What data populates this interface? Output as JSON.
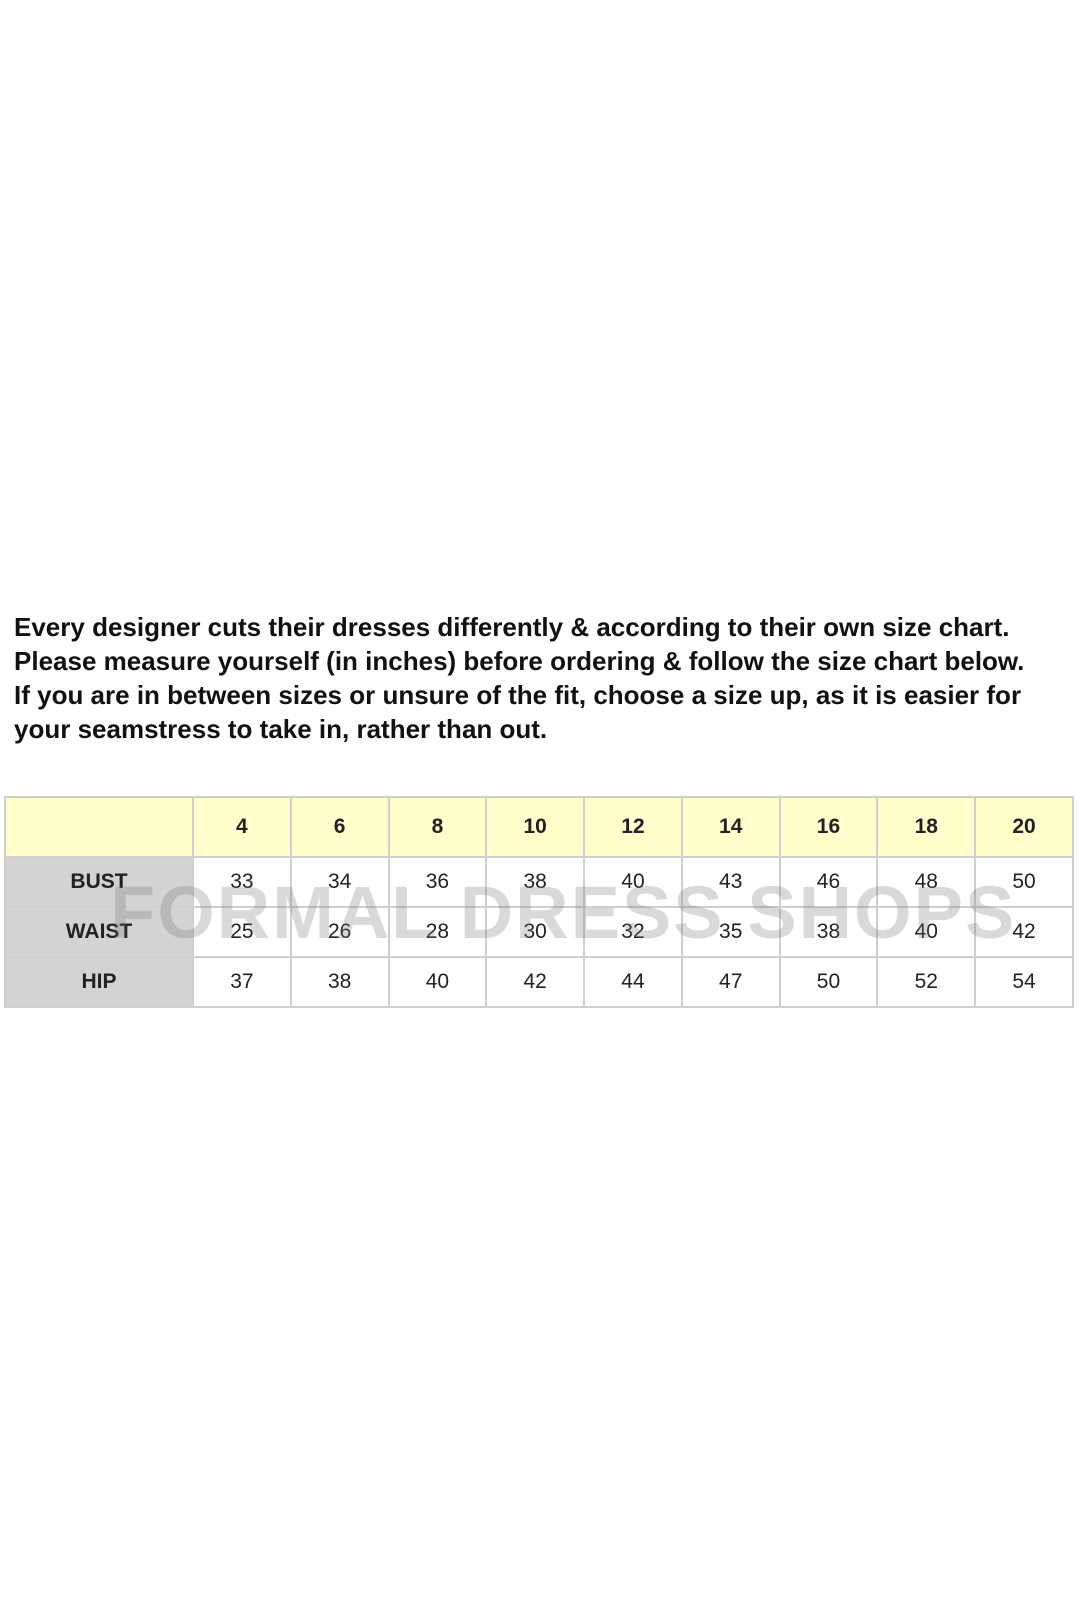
{
  "intro": {
    "paragraph1": "Every designer cuts their dresses differently & according to their own size chart. Please measure yourself (in inches) before ordering & follow the size chart below.",
    "paragraph2": "If you are in between sizes or unsure of the fit, choose a size up, as it is easier for your seamstress to take in, rather than out."
  },
  "size_table": {
    "corner": "",
    "sizes": [
      "4",
      "6",
      "8",
      "10",
      "12",
      "14",
      "16",
      "18",
      "20"
    ],
    "rows": [
      {
        "label": "BUST",
        "values": [
          "33",
          "34",
          "36",
          "38",
          "40",
          "43",
          "46",
          "48",
          "50"
        ]
      },
      {
        "label": "WAIST",
        "values": [
          "25",
          "26",
          "28",
          "30",
          "32",
          "35",
          "38",
          "40",
          "42"
        ]
      },
      {
        "label": "HIP",
        "values": [
          "37",
          "38",
          "40",
          "42",
          "44",
          "47",
          "50",
          "52",
          "54"
        ]
      }
    ],
    "colors": {
      "header_bg": "#ffffcc",
      "label_bg": "#d3d3d3",
      "border": "#cfcfcf"
    }
  },
  "watermark": "FORMAL DRESS SHOPS"
}
